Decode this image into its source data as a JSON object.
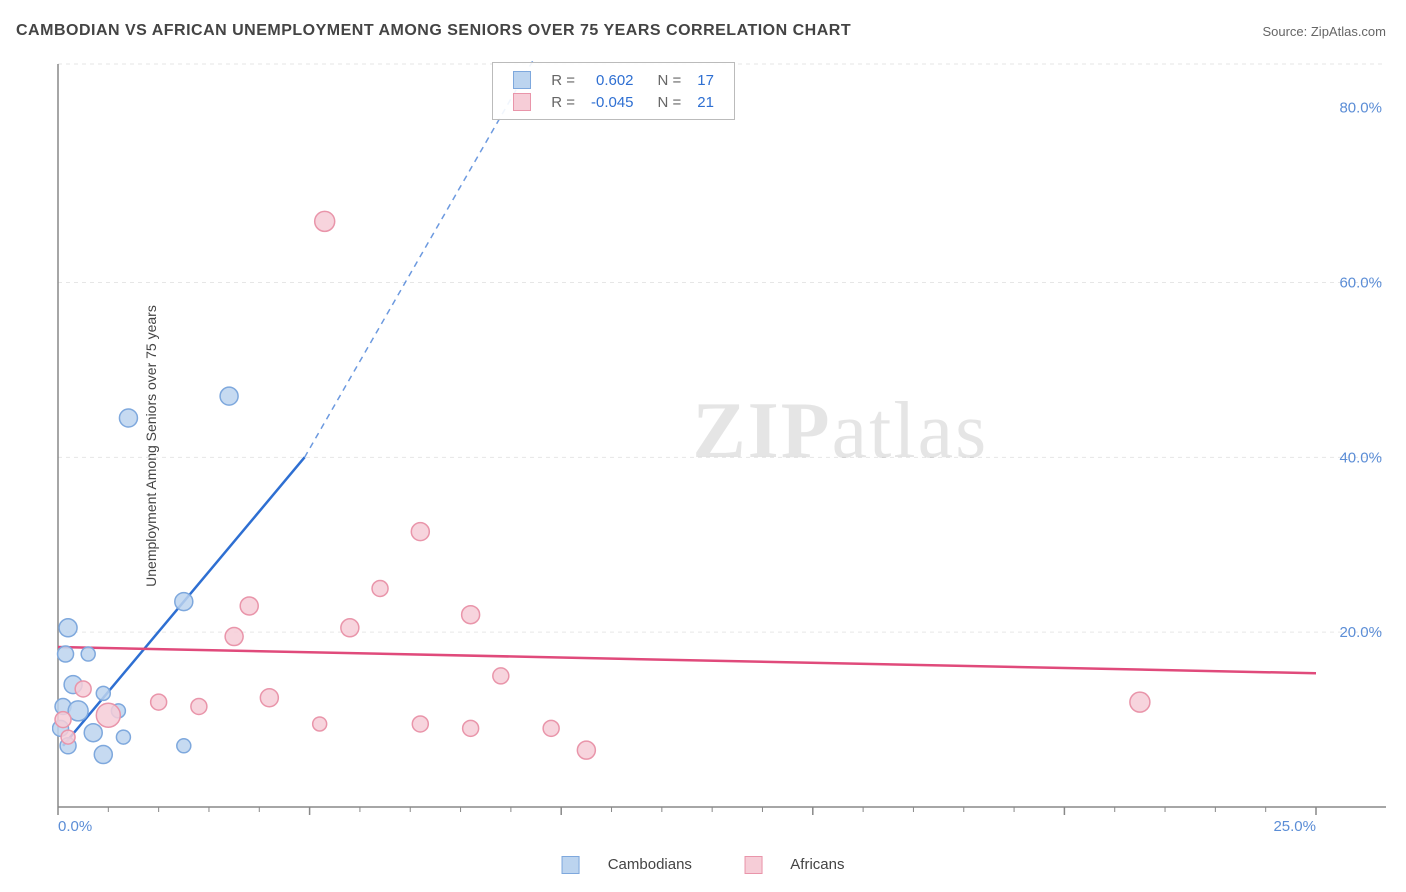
{
  "title": "CAMBODIAN VS AFRICAN UNEMPLOYMENT AMONG SENIORS OVER 75 YEARS CORRELATION CHART",
  "source_label": "Source: ",
  "source_name": "ZipAtlas.com",
  "y_axis_label": "Unemployment Among Seniors over 75 years",
  "watermark_zip": "ZIP",
  "watermark_atlas": "atlas",
  "chart": {
    "type": "scatter-correlation",
    "background_color": "#ffffff",
    "grid_color": "#e6e6e6",
    "axis_color": "#888888",
    "tick_label_color": "#5b8dd6",
    "title_fontsize": 16,
    "label_fontsize": 14,
    "tick_fontsize": 15,
    "xlim": [
      0,
      25
    ],
    "ylim": [
      0,
      85
    ],
    "x_ticks_major": [
      0,
      5,
      10,
      15,
      20,
      25
    ],
    "x_tick_labels": {
      "0": "0.0%",
      "25": "25.0%"
    },
    "y_ticks_major": [
      20,
      40,
      60,
      80
    ],
    "y_tick_labels": {
      "20": "20.0%",
      "40": "40.0%",
      "60": "60.0%",
      "80": "80.0%"
    },
    "y_gridlines": [
      20,
      40,
      60,
      85
    ],
    "marker_radius": 9,
    "marker_stroke_width": 1.5,
    "line_width": 2.5,
    "dash_pattern": "6 5",
    "series": [
      {
        "name": "Cambodians",
        "fill": "#bcd4ef",
        "stroke": "#7ea8dd",
        "line_color": "#2e6fd2",
        "r_value": "0.602",
        "n_value": "17",
        "regression": {
          "x1": 0.1,
          "y1": 7,
          "x2": 4.9,
          "y2": 40,
          "dash_to_x": 9.5,
          "dash_to_y": 86
        },
        "points": [
          {
            "x": 0.2,
            "y": 20.5,
            "r": 9
          },
          {
            "x": 1.4,
            "y": 44.5,
            "r": 9
          },
          {
            "x": 3.4,
            "y": 47.0,
            "r": 9
          },
          {
            "x": 2.5,
            "y": 23.5,
            "r": 9
          },
          {
            "x": 0.15,
            "y": 17.5,
            "r": 8
          },
          {
            "x": 0.6,
            "y": 17.5,
            "r": 7
          },
          {
            "x": 0.3,
            "y": 14.0,
            "r": 9
          },
          {
            "x": 0.9,
            "y": 13.0,
            "r": 7
          },
          {
            "x": 0.1,
            "y": 11.5,
            "r": 8
          },
          {
            "x": 0.4,
            "y": 11.0,
            "r": 10
          },
          {
            "x": 1.2,
            "y": 11.0,
            "r": 7
          },
          {
            "x": 0.05,
            "y": 9.0,
            "r": 8
          },
          {
            "x": 0.7,
            "y": 8.5,
            "r": 9
          },
          {
            "x": 1.3,
            "y": 8.0,
            "r": 7
          },
          {
            "x": 0.2,
            "y": 7.0,
            "r": 8
          },
          {
            "x": 0.9,
            "y": 6.0,
            "r": 9
          },
          {
            "x": 2.5,
            "y": 7.0,
            "r": 7
          }
        ]
      },
      {
        "name": "Africans",
        "fill": "#f6cdd7",
        "stroke": "#e995aa",
        "line_color": "#e04a7b",
        "r_value": "-0.045",
        "n_value": "21",
        "regression": {
          "x1": 0,
          "y1": 18.3,
          "x2": 25,
          "y2": 15.3
        },
        "points": [
          {
            "x": 5.3,
            "y": 67.0,
            "r": 10
          },
          {
            "x": 7.2,
            "y": 31.5,
            "r": 9
          },
          {
            "x": 6.4,
            "y": 25.0,
            "r": 8
          },
          {
            "x": 3.8,
            "y": 23.0,
            "r": 9
          },
          {
            "x": 8.2,
            "y": 22.0,
            "r": 9
          },
          {
            "x": 3.5,
            "y": 19.5,
            "r": 9
          },
          {
            "x": 5.8,
            "y": 20.5,
            "r": 9
          },
          {
            "x": 8.8,
            "y": 15.0,
            "r": 8
          },
          {
            "x": 4.2,
            "y": 12.5,
            "r": 9
          },
          {
            "x": 2.0,
            "y": 12.0,
            "r": 8
          },
          {
            "x": 2.8,
            "y": 11.5,
            "r": 8
          },
          {
            "x": 1.0,
            "y": 10.5,
            "r": 12
          },
          {
            "x": 7.2,
            "y": 9.5,
            "r": 8
          },
          {
            "x": 8.2,
            "y": 9.0,
            "r": 8
          },
          {
            "x": 5.2,
            "y": 9.5,
            "r": 7
          },
          {
            "x": 9.8,
            "y": 9.0,
            "r": 8
          },
          {
            "x": 10.5,
            "y": 6.5,
            "r": 9
          },
          {
            "x": 0.5,
            "y": 13.5,
            "r": 8
          },
          {
            "x": 0.1,
            "y": 10.0,
            "r": 8
          },
          {
            "x": 0.2,
            "y": 8.0,
            "r": 7
          },
          {
            "x": 21.5,
            "y": 12.0,
            "r": 10
          }
        ]
      }
    ],
    "legend_top": {
      "r_label": "R =",
      "n_label": "N ="
    },
    "legend_bottom_labels": [
      "Cambodians",
      "Africans"
    ]
  }
}
